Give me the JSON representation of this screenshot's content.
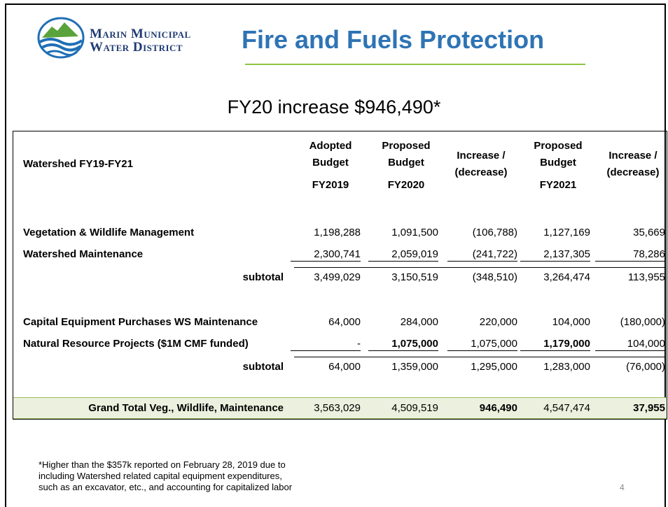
{
  "header": {
    "logo_line1": "Marin Municipal",
    "logo_line2": "Water District",
    "title": "Fire and Fuels Protection"
  },
  "subtitle": "FY20 increase $946,490*",
  "table": {
    "heading": "Watershed FY19-FY21",
    "columns": [
      [
        "Adopted",
        "Budget",
        "FY2019"
      ],
      [
        "Proposed",
        "Budget",
        "FY2020"
      ],
      [
        "Increase /",
        "(decrease)"
      ],
      [
        "Proposed",
        "Budget",
        "FY2021"
      ],
      [
        "Increase /",
        "(decrease)"
      ]
    ],
    "rows": [
      [
        "Vegetation & Wildlife Management",
        "1,198,288",
        "1,091,500",
        "(106,788)",
        "1,127,169",
        "35,669"
      ],
      [
        "Watershed Maintenance",
        "2,300,741",
        "2,059,019",
        "(241,722)",
        "2,137,305",
        "78,286"
      ],
      [
        "subtotal",
        "3,499,029",
        "3,150,519",
        "(348,510)",
        "3,264,474",
        "113,955"
      ],
      [
        "Capital Equipment Purchases  WS Maintenance",
        "64,000",
        "284,000",
        "220,000",
        "104,000",
        "(180,000)"
      ],
      [
        "Natural Resource Projects ($1M CMF funded)",
        "-",
        "1,075,000",
        "1,075,000",
        "1,179,000",
        "104,000"
      ],
      [
        "subtotal",
        "64,000",
        "1,359,000",
        "1,295,000",
        "1,283,000",
        "(76,000)"
      ],
      [
        "Grand Total Veg., Wildlife, Maintenance",
        "3,563,029",
        "4,509,519",
        "946,490",
        "4,547,474",
        "37,955"
      ]
    ]
  },
  "footnote": [
    "*Higher than the $357k reported on February 28, 2019 due to",
    "including Watershed related capital equipment expenditures,",
    "such as an excavator, etc., and accounting for capitalized labor"
  ],
  "page_number": "4"
}
